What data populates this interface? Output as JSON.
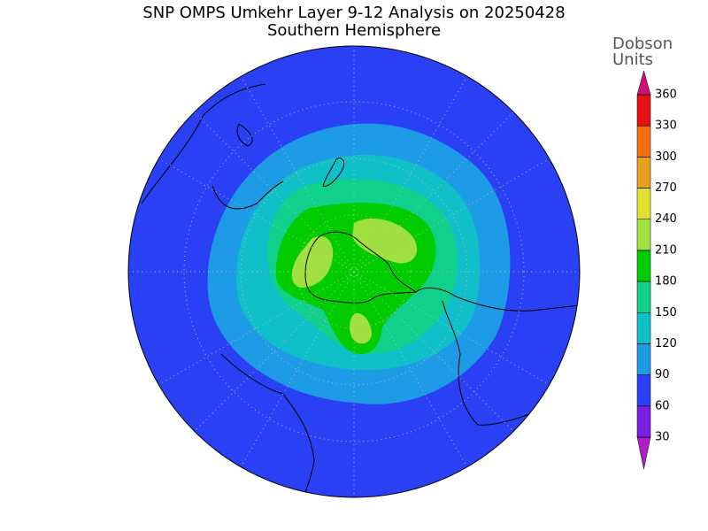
{
  "header": {
    "title": "SNP OMPS Umkehr Layer 9-12 Analysis on 20250428",
    "subtitle": "Southern Hemisphere"
  },
  "colorbar": {
    "label": [
      "Dobson",
      "Units"
    ],
    "ticks": [
      30,
      60,
      90,
      120,
      150,
      180,
      210,
      240,
      270,
      300,
      330,
      360
    ],
    "colors": [
      "#b01cc8",
      "#7a1ee0",
      "#2a40f5",
      "#1e9be6",
      "#10c0c8",
      "#10d08c",
      "#00cc00",
      "#a0e040",
      "#e0e030",
      "#e8a020",
      "#f07010",
      "#e81010",
      "#d0107a"
    ]
  }
}
